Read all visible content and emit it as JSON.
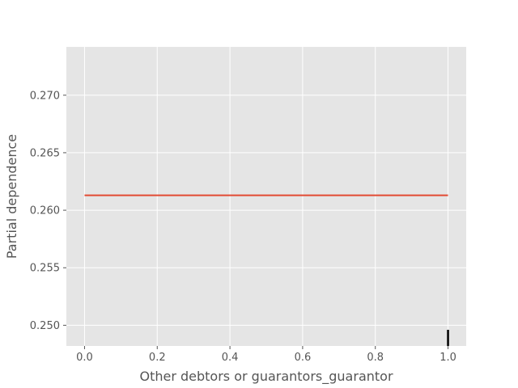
{
  "chart_data": {
    "type": "line",
    "title": "",
    "xlabel": "Other debtors or guarantors_guarantor",
    "ylabel": "Partial dependence",
    "xlim": [
      -0.05,
      1.05
    ],
    "ylim": [
      0.2482,
      0.2742
    ],
    "xticks": [
      0.0,
      0.2,
      0.4,
      0.6,
      0.8,
      1.0
    ],
    "xtick_labels": [
      "0.0",
      "0.2",
      "0.4",
      "0.6",
      "0.8",
      "1.0"
    ],
    "yticks": [
      0.25,
      0.255,
      0.26,
      0.265,
      0.27
    ],
    "ytick_labels": [
      "0.250",
      "0.255",
      "0.260",
      "0.265",
      "0.270"
    ],
    "grid": true,
    "series": [
      {
        "x": [
          0.0,
          1.0
        ],
        "y": [
          0.2613,
          0.2613
        ],
        "color": "#E24A33"
      }
    ],
    "rug": {
      "x": [
        1.0
      ],
      "color": "#000000"
    },
    "background_color": "#E5E5E5",
    "grid_color": "#FFFFFF"
  }
}
